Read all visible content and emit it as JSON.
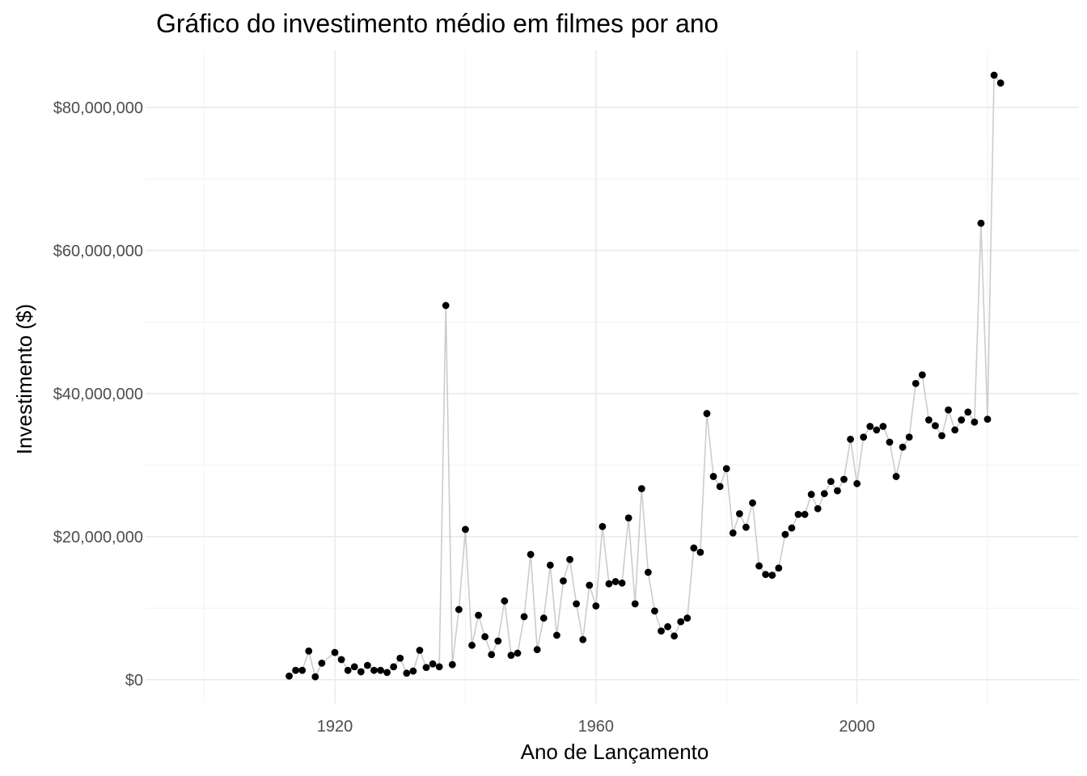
{
  "chart_data": {
    "type": "line",
    "title": "Gráfico do investimento médio em filmes por ano",
    "xlabel": "Ano de Lançamento",
    "ylabel": "Investimento ($)",
    "xlim": [
      1891,
      2034
    ],
    "ylim": [
      -3300000,
      88000000
    ],
    "x_ticks": [
      1920,
      1960,
      2000
    ],
    "x_tick_labels": [
      "1920",
      "1960",
      "2000"
    ],
    "x_minor_ticks": [
      1900,
      1940,
      1980,
      2020
    ],
    "y_ticks": [
      0,
      20000000,
      40000000,
      60000000,
      80000000
    ],
    "y_tick_labels": [
      "$0",
      "$20,000,000",
      "$40,000,000",
      "$60,000,000",
      "$80,000,000"
    ],
    "y_minor_ticks": [
      10000000,
      30000000,
      50000000,
      70000000
    ],
    "grid": true,
    "legend": "none",
    "line_color": "#cccccc",
    "point_color": "#000000",
    "x": [
      1913,
      1914,
      1915,
      1916,
      1917,
      1918,
      1919,
      1920,
      1921,
      1922,
      1923,
      1924,
      1925,
      1926,
      1927,
      1928,
      1929,
      1930,
      1931,
      1932,
      1933,
      1934,
      1935,
      1936,
      1937,
      1938,
      1939,
      1940,
      1941,
      1942,
      1943,
      1944,
      1945,
      1946,
      1947,
      1948,
      1949,
      1950,
      1951,
      1952,
      1953,
      1954,
      1955,
      1956,
      1957,
      1958,
      1959,
      1960,
      1961,
      1962,
      1963,
      1964,
      1965,
      1966,
      1967,
      1968,
      1969,
      1970,
      1971,
      1972,
      1973,
      1974,
      1975,
      1976,
      1977,
      1978,
      1979,
      1980,
      1981,
      1982,
      1983,
      1984,
      1985,
      1986,
      1987,
      1988,
      1989,
      1990,
      1991,
      1992,
      1993,
      1994,
      1995,
      1996,
      1997,
      1998,
      1999,
      2000,
      2001,
      2002,
      2003,
      2004,
      2005,
      2006,
      2007,
      2008,
      2009,
      2010,
      2011,
      2012,
      2013,
      2014,
      2015,
      2016,
      2017,
      2018,
      2019,
      2020,
      2021,
      2022
    ],
    "values": [
      500000,
      1300000,
      1300000,
      4000000,
      400000,
      2300000,
      0,
      3800000,
      2800000,
      1300000,
      1800000,
      1100000,
      2000000,
      1300000,
      1300000,
      1000000,
      1800000,
      3000000,
      900000,
      1200000,
      4100000,
      1700000,
      2200000,
      1800000,
      52300000,
      2100000,
      9800000,
      21000000,
      4800000,
      9000000,
      6000000,
      3500000,
      5400000,
      11000000,
      3400000,
      3700000,
      8800000,
      17500000,
      4200000,
      8600000,
      16000000,
      6200000,
      13800000,
      16800000,
      10600000,
      5600000,
      13200000,
      10300000,
      21400000,
      13400000,
      13700000,
      13500000,
      22600000,
      10600000,
      26700000,
      15000000,
      9600000,
      6800000,
      7400000,
      6100000,
      8100000,
      8600000,
      18400000,
      17800000,
      37200000,
      28400000,
      27000000,
      29500000,
      20500000,
      23200000,
      21300000,
      24700000,
      15900000,
      14700000,
      14600000,
      15600000,
      20300000,
      21200000,
      23100000,
      23100000,
      25900000,
      23900000,
      26000000,
      27700000,
      26400000,
      28000000,
      33600000,
      27400000,
      33900000,
      35400000,
      34900000,
      35400000,
      33200000,
      28400000,
      32500000,
      33900000,
      41400000,
      42600000,
      36300000,
      35500000,
      34100000,
      37700000,
      34900000,
      36300000,
      37400000,
      36000000,
      63800000,
      36400000,
      84500000,
      83400000
    ],
    "value_nulls_note": "",
    "missing_x": [
      1919
    ]
  }
}
